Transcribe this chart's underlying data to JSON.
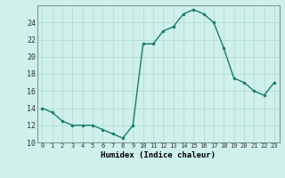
{
  "x": [
    0,
    1,
    2,
    3,
    4,
    5,
    6,
    7,
    8,
    9,
    10,
    11,
    12,
    13,
    14,
    15,
    16,
    17,
    18,
    19,
    20,
    21,
    22,
    23
  ],
  "y": [
    14,
    13.5,
    12.5,
    12,
    12,
    12,
    11.5,
    11,
    10.5,
    12,
    21.5,
    21.5,
    23,
    23.5,
    25,
    25.5,
    25,
    24,
    21,
    17.5,
    17,
    16,
    15.5,
    17
  ],
  "title": "",
  "xlabel": "Humidex (Indice chaleur)",
  "xlim": [
    0,
    23
  ],
  "ylim": [
    10,
    26
  ],
  "yticks": [
    10,
    12,
    14,
    16,
    18,
    20,
    22,
    24
  ],
  "xticks": [
    0,
    1,
    2,
    3,
    4,
    5,
    6,
    7,
    8,
    9,
    10,
    11,
    12,
    13,
    14,
    15,
    16,
    17,
    18,
    19,
    20,
    21,
    22,
    23
  ],
  "line_color": "#1b7a6d",
  "marker_color": "#1b7a6d",
  "bg_color": "#cff0eb",
  "grid_color": "#aed8d2",
  "spine_color": "#7a9a97",
  "fig_bg": "#cff0eb",
  "tick_color": "#333333",
  "xlabel_color": "#000000"
}
